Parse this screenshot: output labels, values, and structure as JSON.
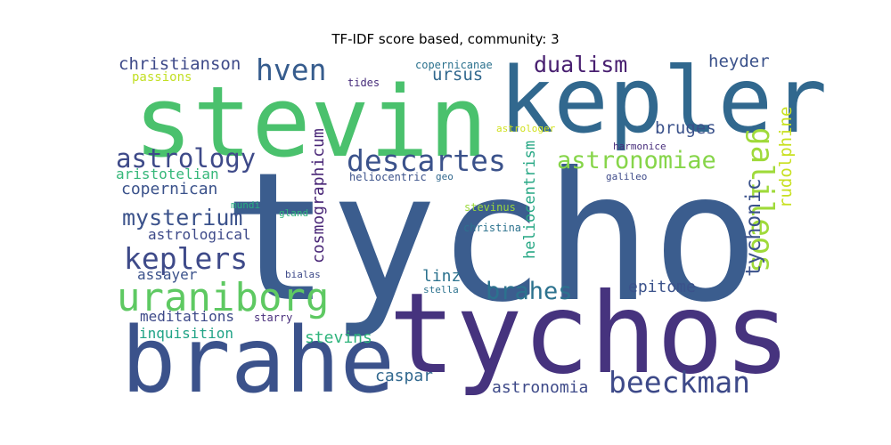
{
  "title": "TF-IDF score based, community: 3",
  "words": [
    {
      "text": "tycho",
      "color": "#3b5d8e"
    },
    {
      "text": "tychos",
      "color": "#46337e"
    },
    {
      "text": "stevin",
      "color": "#4ac16d"
    },
    {
      "text": "kepler",
      "color": "#31688e"
    },
    {
      "text": "brahe",
      "color": "#3b528b"
    },
    {
      "text": "uraniborg",
      "color": "#5ec962"
    },
    {
      "text": "beeckman",
      "color": "#3e4a89"
    },
    {
      "text": "descartes",
      "color": "#3b528b"
    },
    {
      "text": "galileos",
      "color": "#9fda3a"
    },
    {
      "text": "keplers",
      "color": "#3e4a89"
    },
    {
      "text": "astronomiae",
      "color": "#86d549"
    },
    {
      "text": "hven",
      "color": "#365c8d"
    },
    {
      "text": "astrology",
      "color": "#3e4a89"
    },
    {
      "text": "mysterium",
      "color": "#3b528b"
    },
    {
      "text": "brahes",
      "color": "#2c728e"
    },
    {
      "text": "tychonic",
      "color": "#3b528b"
    },
    {
      "text": "dualism",
      "color": "#481f70"
    },
    {
      "text": "christianson",
      "color": "#3e4a89"
    },
    {
      "text": "cosmographicum",
      "color": "#482576"
    },
    {
      "text": "rudolphine",
      "color": "#c8e020"
    },
    {
      "text": "heliocentrism",
      "color": "#26a784"
    },
    {
      "text": "ursus",
      "color": "#31688e"
    },
    {
      "text": "heyder",
      "color": "#3b528b"
    },
    {
      "text": "bruges",
      "color": "#3b528b"
    },
    {
      "text": "copernican",
      "color": "#3b528b"
    },
    {
      "text": "aristotelian",
      "color": "#35b779"
    },
    {
      "text": "astrological",
      "color": "#3e4a89"
    },
    {
      "text": "assayer",
      "color": "#3b528b"
    },
    {
      "text": "meditations",
      "color": "#3e4a89"
    },
    {
      "text": "inquisition",
      "color": "#20a386"
    },
    {
      "text": "stevins",
      "color": "#2fb47c"
    },
    {
      "text": "caspar",
      "color": "#31688e"
    },
    {
      "text": "astronomia",
      "color": "#3e4a89"
    },
    {
      "text": "epitome",
      "color": "#3b528b"
    },
    {
      "text": "linz",
      "color": "#2c728e"
    },
    {
      "text": "passions",
      "color": "#c2df23"
    },
    {
      "text": "tides",
      "color": "#472d7b"
    },
    {
      "text": "copernicanae",
      "color": "#2c728e"
    },
    {
      "text": "astrologer",
      "color": "#d0e11c"
    },
    {
      "text": "harmonice",
      "color": "#472d7b"
    },
    {
      "text": "heliocentric",
      "color": "#3b528b"
    },
    {
      "text": "geo",
      "color": "#31688e"
    },
    {
      "text": "galileo",
      "color": "#3e4a89"
    },
    {
      "text": "mundi",
      "color": "#28ae80"
    },
    {
      "text": "gland",
      "color": "#2fb47c"
    },
    {
      "text": "stevinus",
      "color": "#9bd93c"
    },
    {
      "text": "christina",
      "color": "#2c728e"
    },
    {
      "text": "bialas",
      "color": "#3e4a89"
    },
    {
      "text": "stella",
      "color": "#2c728e"
    },
    {
      "text": "starry",
      "color": "#472d7b"
    }
  ]
}
